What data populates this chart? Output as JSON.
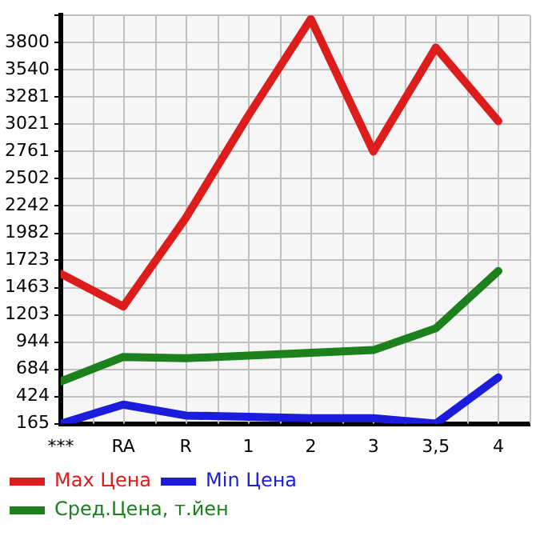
{
  "chart_data": {
    "type": "line",
    "categories": [
      "***",
      "RA",
      "R",
      "1",
      "2",
      "3",
      "3,5",
      "4"
    ],
    "series": [
      {
        "name": "Max Цена",
        "color": "#dd1c1c",
        "values": [
          1595,
          1283,
          2128,
          3103,
          4026,
          2761,
          3753,
          3051
        ]
      },
      {
        "name": "Min Цена",
        "color": "#1c1cdd",
        "values": [
          165,
          347,
          243,
          230,
          217,
          217,
          165,
          607
        ]
      },
      {
        "name": "Сред.Цена, т.йен",
        "color": "#1c801c",
        "values": [
          568,
          802,
          789,
          815,
          841,
          867,
          1075,
          1621
        ]
      }
    ],
    "ylim": [
      165,
      4060
    ],
    "yticks": [
      165,
      424,
      684,
      944,
      1203,
      1463,
      1723,
      1982,
      2242,
      2502,
      2761,
      3021,
      3281,
      3540,
      3800,
      {
        "value": 4060,
        "label": null
      }
    ],
    "grid": true,
    "legend": "bottom",
    "marker": "none",
    "line_style": "solid"
  }
}
